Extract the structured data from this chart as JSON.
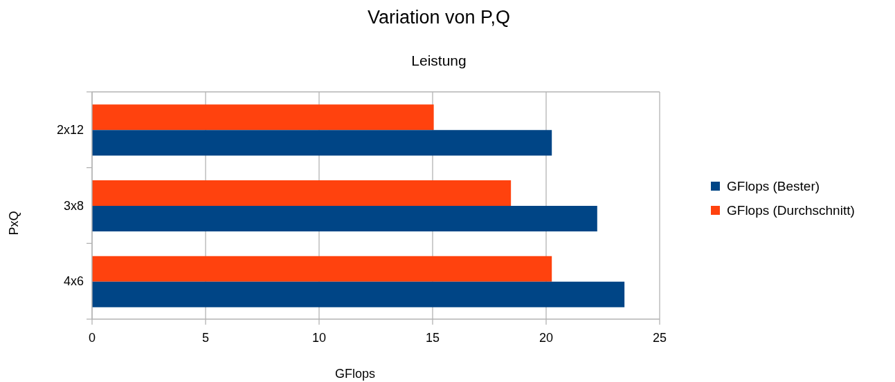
{
  "chart_data": {
    "type": "bar",
    "orientation": "horizontal",
    "title": "Variation von P,Q",
    "subtitle": "Leistung",
    "xlabel": "GFlops",
    "ylabel": "PxQ",
    "categories": [
      "2x12",
      "3x8",
      "4x6"
    ],
    "series": [
      {
        "name": "GFlops (Bester)",
        "color": "#004586",
        "values": [
          20.25,
          22.25,
          23.45
        ]
      },
      {
        "name": "GFlops (Durchschnitt)",
        "color": "#ff420e",
        "values": [
          15.05,
          18.45,
          20.25
        ]
      }
    ],
    "xlim": [
      0,
      25
    ],
    "xticks": [
      0,
      5,
      10,
      15,
      20,
      25
    ],
    "grid": "x",
    "legend": "right"
  }
}
